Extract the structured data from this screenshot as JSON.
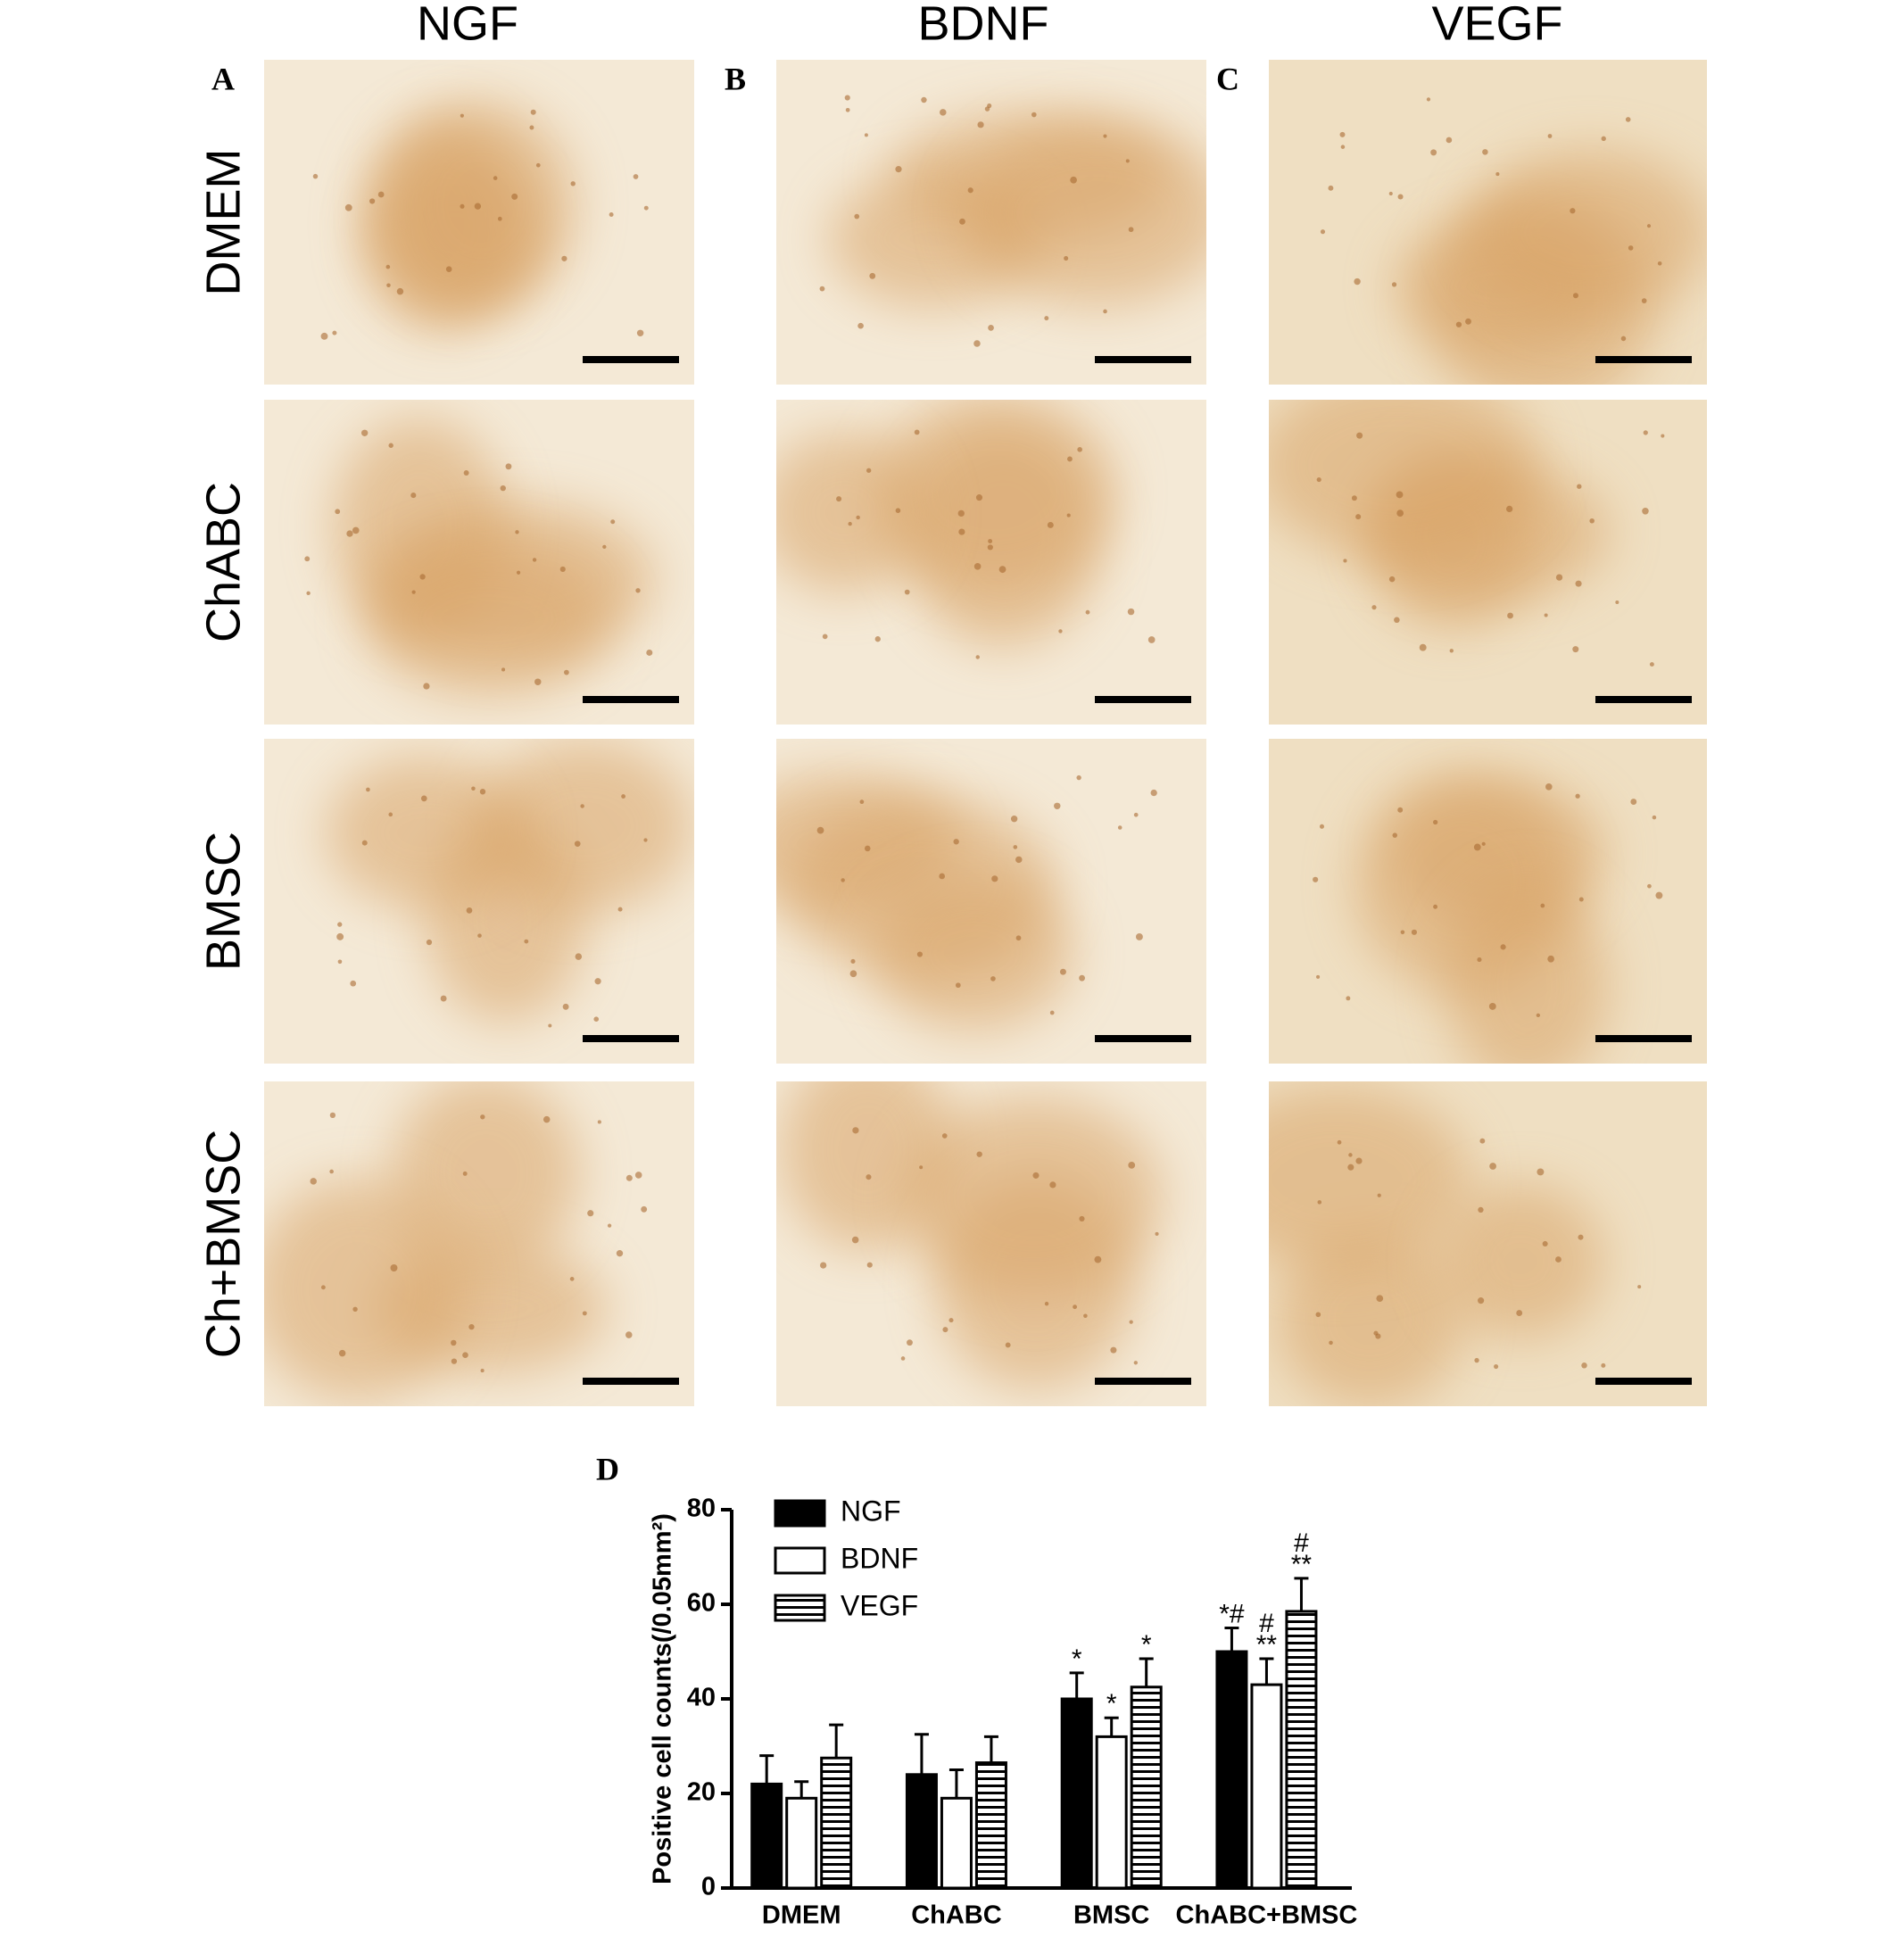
{
  "column_headers": [
    "NGF",
    "BDNF",
    "VEGF"
  ],
  "row_labels": [
    "DMEM",
    "ChABC",
    "BMSC",
    "Ch+BMSC"
  ],
  "panel_labels": [
    "A",
    "B",
    "C",
    "D"
  ],
  "chart_data": {
    "type": "bar",
    "ylabel": "Positive cell counts(/0.05mm²)",
    "categories": [
      "DMEM",
      "ChABC",
      "BMSC",
      "ChABC+BMSC"
    ],
    "series": [
      {
        "name": "NGF",
        "color": "#000000",
        "pattern": "solid",
        "values": [
          22,
          24,
          40,
          50
        ],
        "errors": [
          6,
          8.5,
          5.5,
          5
        ],
        "markers": [
          null,
          null,
          "*",
          "*#"
        ]
      },
      {
        "name": "BDNF",
        "color": "#000000",
        "pattern": "open",
        "values": [
          19,
          19,
          32,
          43
        ],
        "errors": [
          3.5,
          6,
          4,
          5.5
        ],
        "markers": [
          null,
          null,
          "*",
          [
            "#",
            "**"
          ]
        ]
      },
      {
        "name": "VEGF",
        "color": "#000000",
        "pattern": "horizontal-stripes",
        "values": [
          27.5,
          26.5,
          42.5,
          58.5
        ],
        "errors": [
          7,
          5.5,
          6,
          7
        ],
        "markers": [
          null,
          null,
          "*",
          [
            "#",
            "**"
          ]
        ]
      }
    ],
    "ylim": [
      0,
      80
    ],
    "yticks": [
      0,
      20,
      40,
      60,
      80
    ],
    "error_bars": "upper",
    "legend": "upper-left"
  }
}
